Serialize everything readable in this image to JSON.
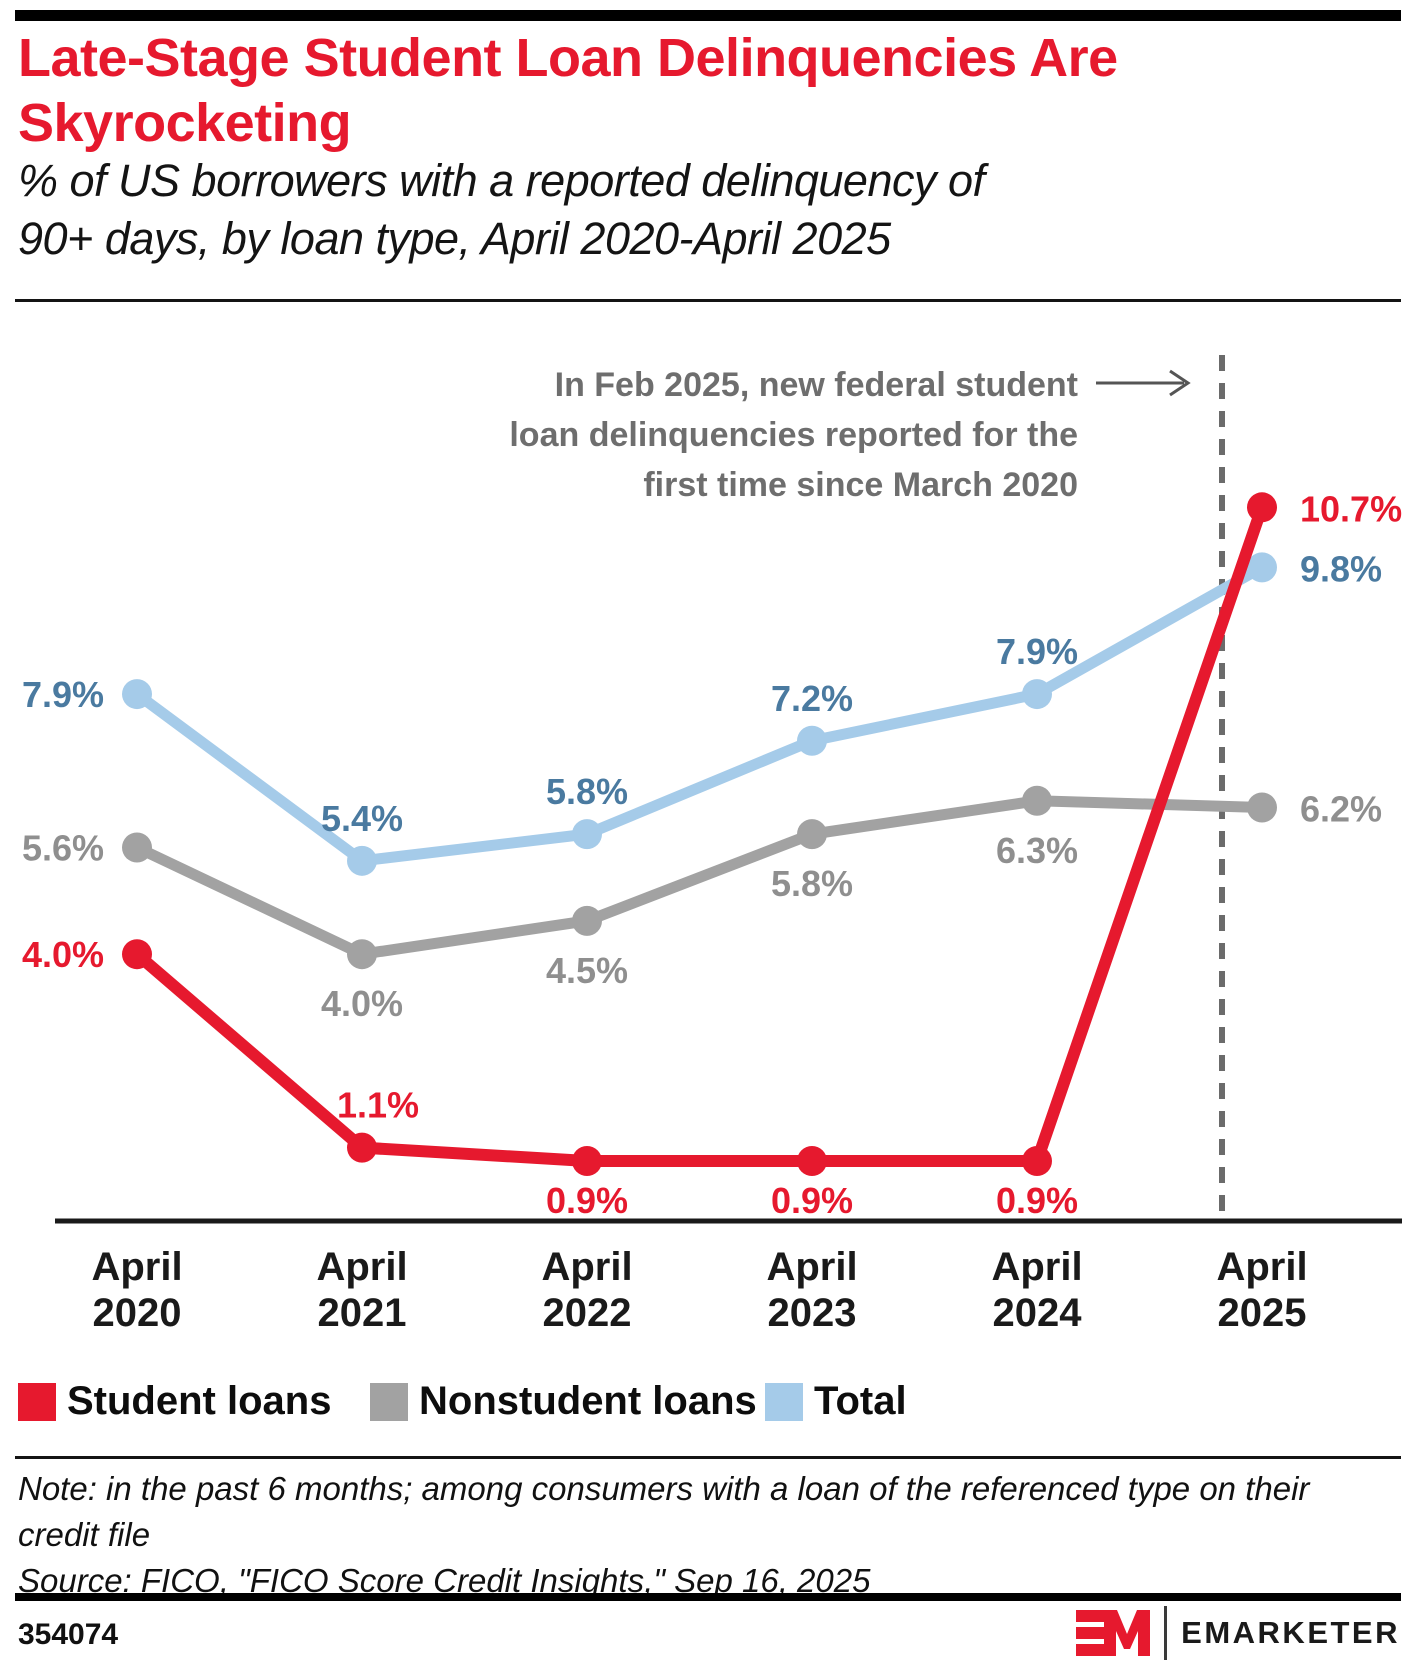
{
  "header": {
    "title_line1": "Late-Stage Student Loan Delinquencies Are",
    "title_line2": "Skyrocketing",
    "subtitle_line1": "% of US borrowers with a reported delinquency of",
    "subtitle_line2": "90+ days, by loan type, April 2020-April 2025"
  },
  "annotation": {
    "line1": "In Feb 2025, new federal student",
    "line2": "loan delinquencies reported for the",
    "line3": "first time since March 2020"
  },
  "chart_data": {
    "type": "line",
    "title": "Late-Stage Student Loan Delinquencies Are Skyrocketing",
    "subtitle": "% of US borrowers with a reported delinquency of 90+ days, by loan type, April 2020-April 2025",
    "categories": [
      "April 2020",
      "April 2021",
      "April 2022",
      "April 2023",
      "April 2024",
      "April 2025"
    ],
    "x_tick_line1": "April",
    "x_tick_years": [
      "2020",
      "2021",
      "2022",
      "2023",
      "2024",
      "2025"
    ],
    "series": [
      {
        "name": "Student loans",
        "color": "#e6192e",
        "values": [
          4.0,
          1.1,
          0.9,
          0.9,
          0.9,
          10.7
        ],
        "labels": [
          "4.0%",
          "1.1%",
          "0.9%",
          "0.9%",
          "0.9%",
          "10.7%"
        ]
      },
      {
        "name": "Nonstudent loans",
        "color": "#a2a2a2",
        "values": [
          5.6,
          4.0,
          4.5,
          5.8,
          6.3,
          6.2
        ],
        "labels": [
          "5.6%",
          "4.0%",
          "4.5%",
          "5.8%",
          "6.3%",
          "6.2%"
        ]
      },
      {
        "name": "Total",
        "color": "#a5cbe9",
        "values": [
          7.9,
          5.4,
          5.8,
          7.2,
          7.9,
          9.8
        ],
        "labels": [
          "7.9%",
          "5.4%",
          "5.8%",
          "7.2%",
          "7.9%",
          "9.8%"
        ]
      }
    ],
    "label_colors": {
      "Student loans": "#e6192e",
      "Nonstudent loans": "#8f8f8f",
      "Total": "#4a7aa0"
    },
    "ylim": [
      0,
      13.5
    ],
    "grid": false,
    "legend_position": "bottom",
    "annotation": "In Feb 2025, new federal student loan delinquencies reported for the first time since March 2020",
    "dashed_line_between": "April 2024 and April 2025"
  },
  "legend": {
    "items": [
      {
        "label": "Student loans",
        "color": "#e6192e"
      },
      {
        "label": "Nonstudent loans",
        "color": "#a2a2a2"
      },
      {
        "label": "Total",
        "color": "#a5cbe9"
      }
    ]
  },
  "footer": {
    "note_line1": "Note: in the past 6 months; among consumers with a loan of the referenced type on their",
    "note_line2": "credit file",
    "source": "Source: FICO, \"FICO Score Credit Insights,\" Sep 16, 2025",
    "chart_id": "354074",
    "brand": "EMARKETER"
  }
}
